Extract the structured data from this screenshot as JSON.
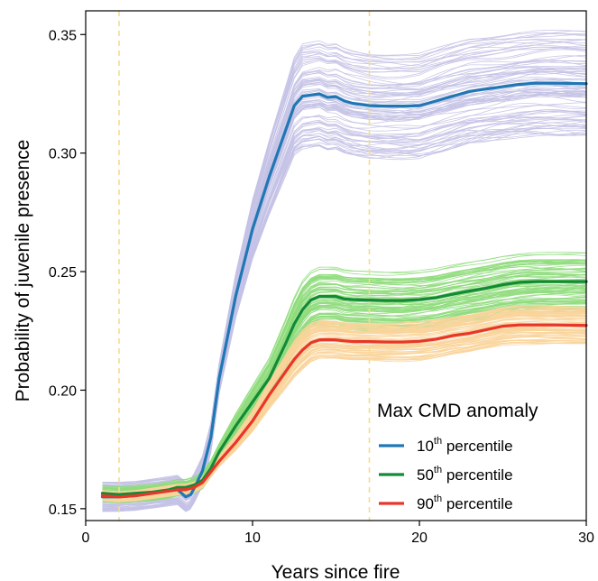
{
  "chart_data": {
    "type": "line",
    "xlabel": "Years since fire",
    "ylabel": "Probability of juvenile presence",
    "xlim": [
      0,
      30
    ],
    "ylim": [
      0.145,
      0.36
    ],
    "x_ticks": [
      0,
      10,
      20,
      30
    ],
    "y_ticks": [
      0.15,
      0.2,
      0.25,
      0.3,
      0.35
    ],
    "x_tick_labels": [
      "0",
      "10",
      "20",
      "30"
    ],
    "y_tick_labels": [
      "0.15",
      "0.20",
      "0.25",
      "0.30",
      "0.35"
    ],
    "reference_lines_x": [
      2,
      17
    ],
    "reference_line_color": "#f5dc8a",
    "grid": false,
    "legend": {
      "title": "Max CMD anomaly",
      "placement": "bottom-right"
    },
    "series": [
      {
        "name_number": "10",
        "name_sup": "th",
        "name_rest": " percentile",
        "color": "#1f77b4",
        "band_color": "#c4c2e6",
        "band_halfwidth_late": 0.022,
        "x": [
          1,
          2,
          3,
          4,
          5,
          5.5,
          6,
          6.3,
          6.6,
          7,
          7.5,
          8,
          9,
          10,
          11,
          12,
          12.5,
          13,
          13.5,
          14,
          14.5,
          15,
          15.5,
          16,
          17,
          18,
          19,
          20,
          21,
          22,
          23,
          24,
          25,
          26,
          27,
          28,
          29,
          30
        ],
        "y": [
          0.155,
          0.155,
          0.1555,
          0.1565,
          0.1575,
          0.158,
          0.155,
          0.156,
          0.16,
          0.166,
          0.18,
          0.205,
          0.24,
          0.268,
          0.29,
          0.31,
          0.32,
          0.324,
          0.3245,
          0.325,
          0.3235,
          0.3238,
          0.322,
          0.321,
          0.32,
          0.3198,
          0.3198,
          0.32,
          0.322,
          0.324,
          0.326,
          0.327,
          0.328,
          0.329,
          0.3295,
          0.3295,
          0.3294,
          0.3293
        ]
      },
      {
        "name_number": "50",
        "name_sup": "th",
        "name_rest": " percentile",
        "color": "#138a36",
        "band_color": "#8fdc7c",
        "band_halfwidth_late": 0.013,
        "x": [
          1,
          2,
          3,
          4,
          5,
          5.5,
          6,
          6.5,
          7,
          7.5,
          8,
          9,
          10,
          11,
          12,
          12.5,
          13,
          13.5,
          14,
          14.5,
          15,
          15.5,
          16,
          17,
          18,
          19,
          20,
          21,
          22,
          23,
          24,
          25,
          26,
          27,
          28,
          29,
          30
        ],
        "y": [
          0.1565,
          0.156,
          0.1565,
          0.157,
          0.158,
          0.159,
          0.159,
          0.16,
          0.162,
          0.167,
          0.174,
          0.185,
          0.195,
          0.205,
          0.22,
          0.228,
          0.234,
          0.238,
          0.2395,
          0.2395,
          0.2395,
          0.2385,
          0.2382,
          0.238,
          0.2378,
          0.2378,
          0.2382,
          0.239,
          0.2405,
          0.2418,
          0.243,
          0.2445,
          0.2455,
          0.2458,
          0.2458,
          0.2458,
          0.2458
        ]
      },
      {
        "name_number": "90",
        "name_sup": "th",
        "name_rest": " percentile",
        "color": "#e8362a",
        "band_color": "#f9d49a",
        "band_halfwidth_late": 0.008,
        "x": [
          1,
          2,
          3,
          4,
          5,
          5.5,
          6,
          6.5,
          7,
          7.5,
          8,
          9,
          10,
          11,
          12,
          12.5,
          13,
          13.5,
          14,
          14.5,
          15,
          15.5,
          16,
          17,
          18,
          19,
          20,
          21,
          22,
          23,
          24,
          25,
          26,
          27,
          28,
          29,
          30
        ],
        "y": [
          0.1555,
          0.155,
          0.1555,
          0.1565,
          0.1575,
          0.158,
          0.158,
          0.159,
          0.161,
          0.1655,
          0.17,
          0.178,
          0.187,
          0.198,
          0.208,
          0.213,
          0.217,
          0.22,
          0.2212,
          0.2213,
          0.2212,
          0.2208,
          0.2205,
          0.2205,
          0.2203,
          0.2203,
          0.2206,
          0.2215,
          0.223,
          0.224,
          0.2255,
          0.227,
          0.2275,
          0.2275,
          0.2275,
          0.2274,
          0.2273
        ]
      }
    ]
  }
}
